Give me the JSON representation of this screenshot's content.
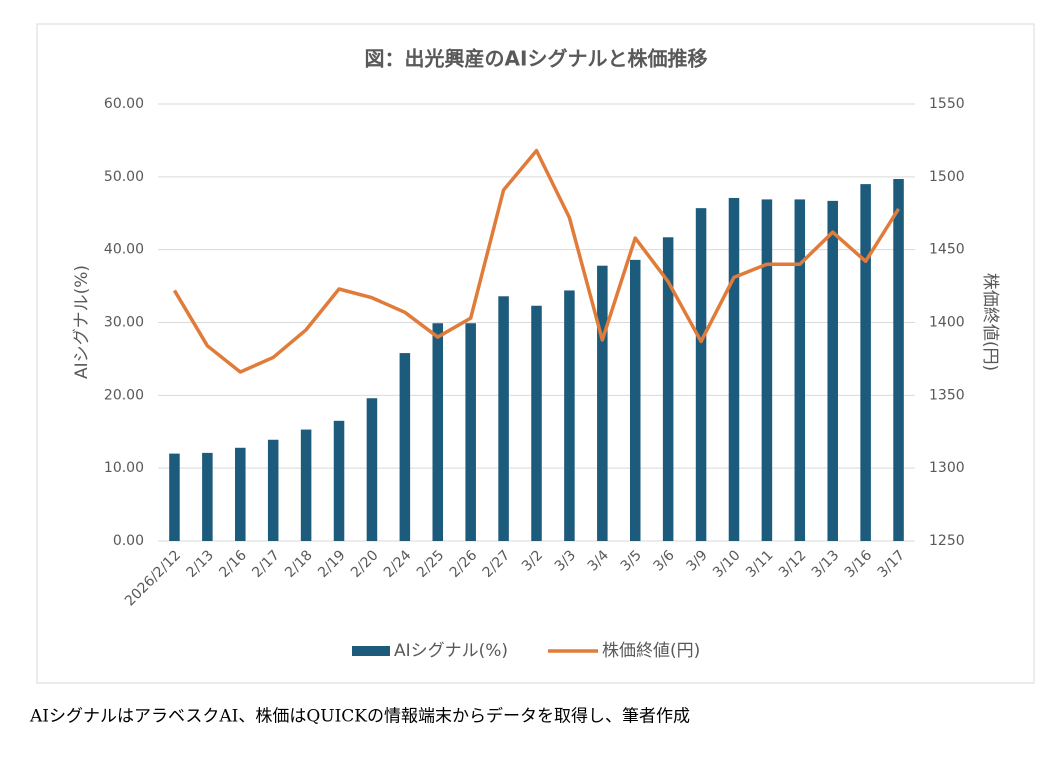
{
  "chart_data": {
    "type": "bar-line",
    "title": "図：出光興産のAIシグナルと株価推移",
    "y_label": "AIシグナル(%)",
    "y2_label": "株価終値(円)",
    "categories": [
      "2026/2/12",
      "2/13",
      "2/16",
      "2/17",
      "2/18",
      "2/19",
      "2/20",
      "2/24",
      "2/25",
      "2/26",
      "2/27",
      "3/2",
      "3/3",
      "3/4",
      "3/5",
      "3/6",
      "3/9",
      "3/10",
      "3/11",
      "3/12",
      "3/13",
      "3/16",
      "3/17"
    ],
    "series": [
      {
        "name": "AIシグナル(%)",
        "type": "bar",
        "color": "#1d5b7d",
        "values": [
          12.0,
          12.1,
          12.8,
          13.9,
          15.3,
          16.5,
          19.6,
          25.8,
          29.9,
          29.9,
          33.6,
          32.3,
          34.4,
          37.8,
          38.6,
          41.7,
          45.7,
          47.1,
          46.9,
          46.9,
          46.7,
          49.0,
          49.7
        ]
      },
      {
        "name": "株価終値(円)",
        "type": "line",
        "axis": "y2",
        "color": "#e07b39",
        "values": [
          1422,
          1384,
          1366,
          1376,
          1395,
          1423,
          1417,
          1407,
          1390,
          1403,
          1491,
          1518,
          1472,
          1388,
          1458,
          1428,
          1387,
          1431,
          1440,
          1440,
          1462,
          1442,
          1478
        ]
      }
    ],
    "ylim": [
      0,
      60
    ],
    "yticks": [
      {
        "value": 0,
        "label": "0.00"
      },
      {
        "value": 10,
        "label": "10.00"
      },
      {
        "value": 20,
        "label": "20.00"
      },
      {
        "value": 30,
        "label": "30.00"
      },
      {
        "value": 40,
        "label": "40.00"
      },
      {
        "value": 50,
        "label": "50.00"
      },
      {
        "value": 60,
        "label": "60.00"
      }
    ],
    "y2lim": [
      1250,
      1550
    ],
    "y2ticks": [
      1250,
      1300,
      1350,
      1400,
      1450,
      1500,
      1550
    ],
    "grid": true,
    "legend": "bottom",
    "source": "AIシグナルはアラベスクAI、株価はQUICKの情報端末からデータを取得し、筆者作成"
  }
}
